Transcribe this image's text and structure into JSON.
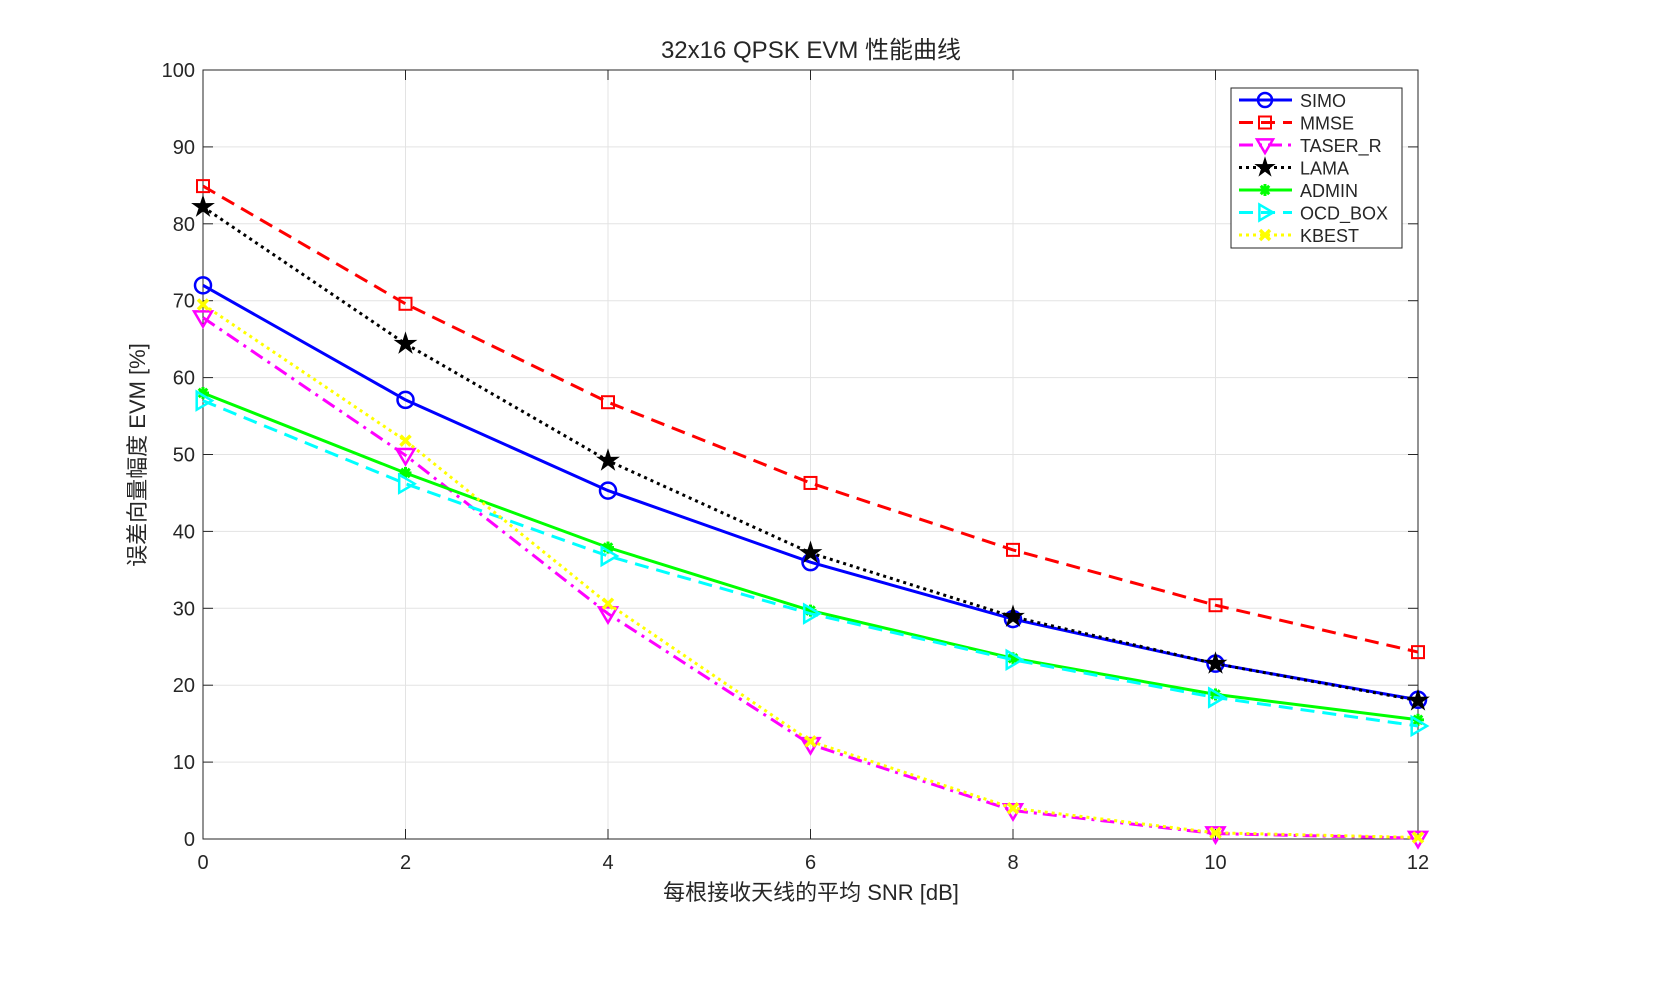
{
  "chart_data": {
    "type": "line",
    "title": "32x16 QPSK EVM 性能曲线",
    "xlabel": "每根接收天线的平均 SNR [dB]",
    "ylabel": "误差向量幅度 EVM [%]",
    "xlim": [
      0,
      12
    ],
    "ylim": [
      0,
      100
    ],
    "xticks": [
      0,
      2,
      4,
      6,
      8,
      10,
      12
    ],
    "yticks": [
      0,
      10,
      20,
      30,
      40,
      50,
      60,
      70,
      80,
      90,
      100
    ],
    "grid": true,
    "legend_position": "top-right",
    "x": [
      0,
      2,
      4,
      6,
      8,
      10,
      12
    ],
    "series": [
      {
        "name": "SIMO",
        "color": "#0000ff",
        "dash": "solid",
        "marker": "circle",
        "values": [
          72.0,
          57.1,
          45.3,
          36.0,
          28.6,
          22.8,
          18.1
        ]
      },
      {
        "name": "MMSE",
        "color": "#ff0000",
        "dash": "dashed",
        "marker": "square",
        "values": [
          84.9,
          69.6,
          56.8,
          46.3,
          37.6,
          30.4,
          24.3
        ]
      },
      {
        "name": "TASER_R",
        "color": "#ff00ff",
        "dash": "dashdot",
        "marker": "triangle-down",
        "values": [
          67.8,
          49.9,
          29.3,
          12.3,
          3.7,
          0.7,
          0.1
        ]
      },
      {
        "name": "LAMA",
        "color": "#000000",
        "dash": "dotted",
        "marker": "star",
        "values": [
          82.2,
          64.4,
          49.2,
          37.2,
          28.9,
          22.8,
          18.0
        ]
      },
      {
        "name": "ADMIN",
        "color": "#00ff00",
        "dash": "solid",
        "marker": "asterisk",
        "values": [
          58.0,
          47.6,
          37.9,
          29.7,
          23.5,
          18.8,
          15.5
        ]
      },
      {
        "name": "OCD_BOX",
        "color": "#00ffff",
        "dash": "dashed",
        "marker": "triangle-right",
        "values": [
          57.0,
          46.2,
          36.8,
          29.3,
          23.3,
          18.4,
          14.7
        ]
      },
      {
        "name": "KBEST",
        "color": "#ffff00",
        "dash": "dotted",
        "marker": "x",
        "values": [
          69.5,
          51.8,
          30.6,
          12.7,
          4.0,
          0.8,
          0.2
        ]
      }
    ]
  }
}
